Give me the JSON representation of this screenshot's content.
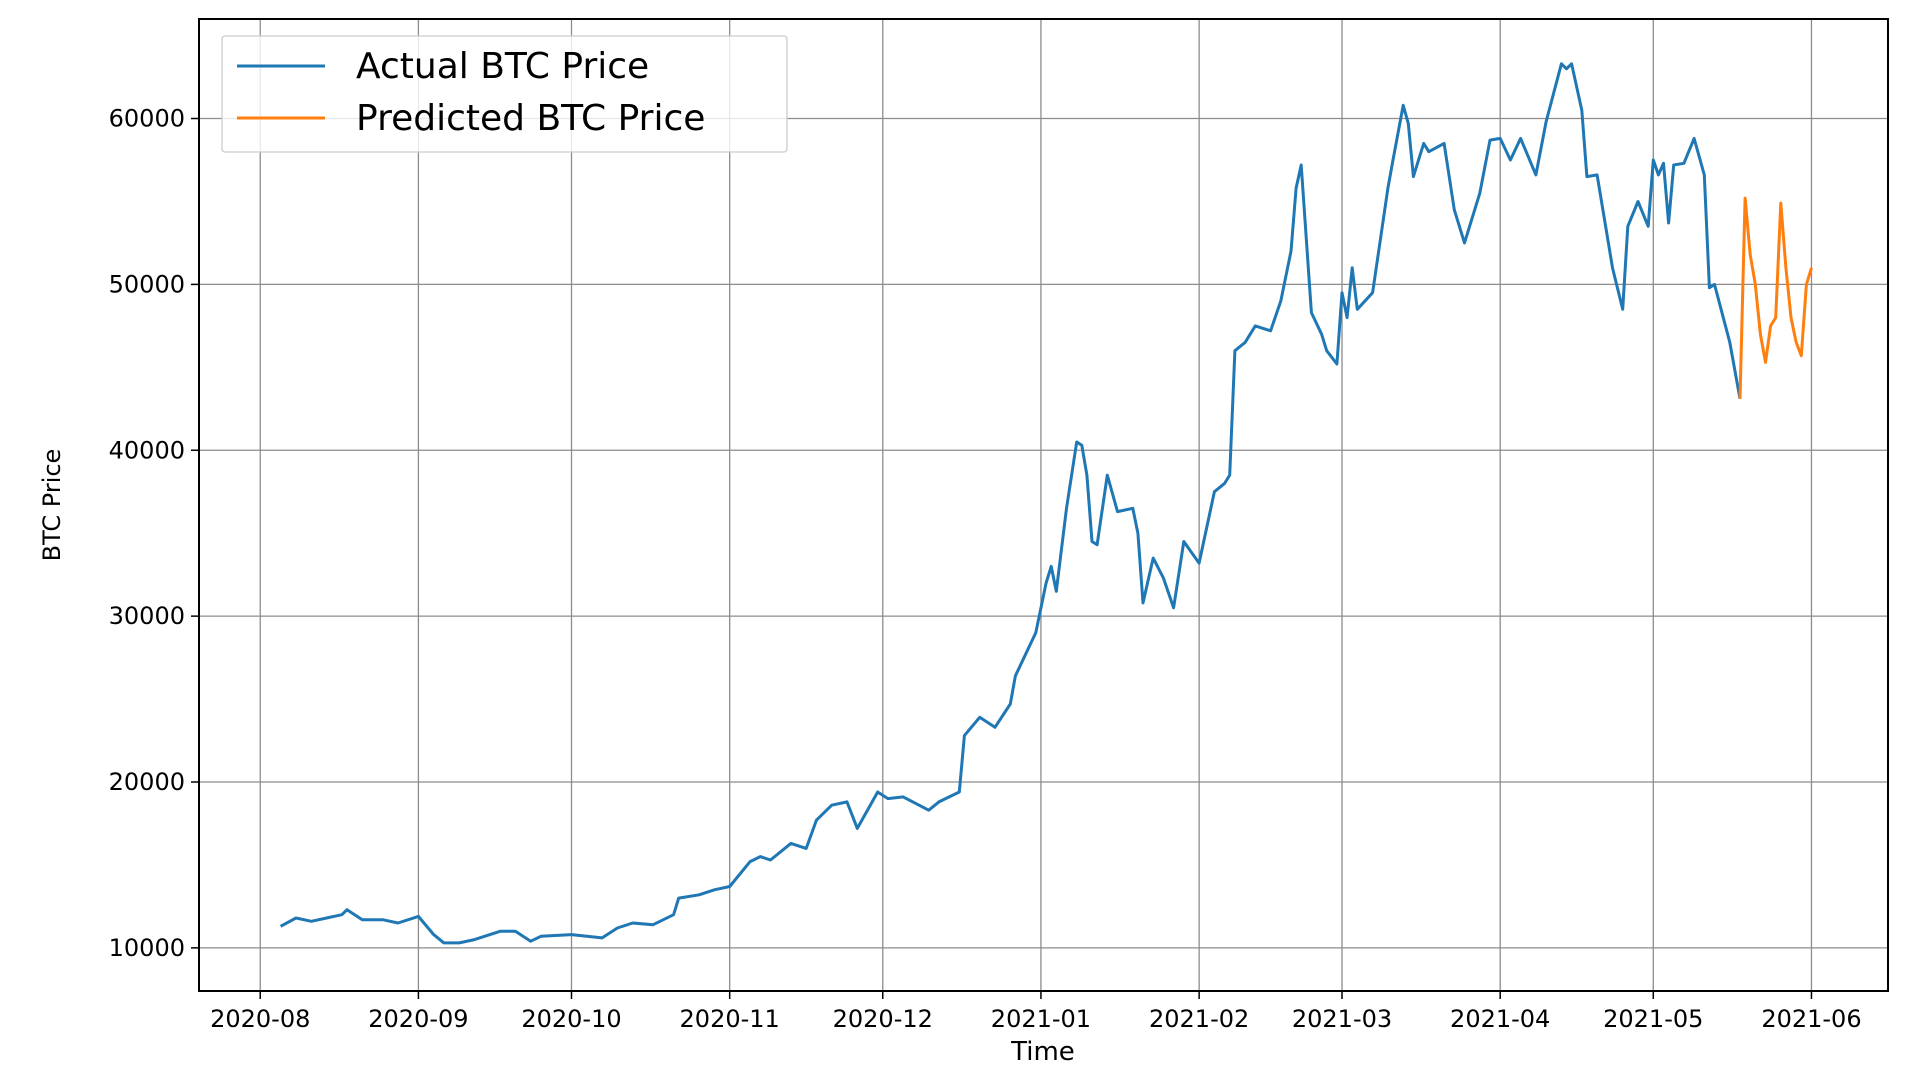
{
  "chart_data": {
    "type": "line",
    "xlabel": "Time",
    "ylabel": "BTC Price",
    "xlim": [
      "2020-07-20",
      "2021-06-16"
    ],
    "xticks": [
      "2020-08",
      "2020-09",
      "2020-10",
      "2020-11",
      "2020-12",
      "2021-01",
      "2021-02",
      "2021-03",
      "2021-04",
      "2021-05",
      "2021-06"
    ],
    "ylim": [
      7400,
      66000
    ],
    "yticks": [
      10000,
      20000,
      30000,
      40000,
      50000,
      60000
    ],
    "grid": true,
    "legend": "upper left",
    "series": [
      {
        "name": "Actual BTC Price",
        "color": "#1f77b4",
        "x": [
          "2020-08-05",
          "2020-08-08",
          "2020-08-11",
          "2020-08-14",
          "2020-08-17",
          "2020-08-18",
          "2020-08-21",
          "2020-08-25",
          "2020-08-28",
          "2020-09-01",
          "2020-09-04",
          "2020-09-06",
          "2020-09-09",
          "2020-09-12",
          "2020-09-17",
          "2020-09-20",
          "2020-09-23",
          "2020-09-25",
          "2020-10-01",
          "2020-10-07",
          "2020-10-10",
          "2020-10-13",
          "2020-10-17",
          "2020-10-21",
          "2020-10-22",
          "2020-10-26",
          "2020-10-29",
          "2020-11-01",
          "2020-11-05",
          "2020-11-07",
          "2020-11-09",
          "2020-11-13",
          "2020-11-16",
          "2020-11-18",
          "2020-11-21",
          "2020-11-24",
          "2020-11-26",
          "2020-11-30",
          "2020-12-02",
          "2020-12-05",
          "2020-12-10",
          "2020-12-12",
          "2020-12-16",
          "2020-12-17",
          "2020-12-20",
          "2020-12-23",
          "2020-12-26",
          "2020-12-27",
          "2020-12-31",
          "2021-01-02",
          "2021-01-03",
          "2021-01-04",
          "2021-01-06",
          "2021-01-08",
          "2021-01-09",
          "2021-01-10",
          "2021-01-11",
          "2021-01-12",
          "2021-01-14",
          "2021-01-16",
          "2021-01-19",
          "2021-01-20",
          "2021-01-21",
          "2021-01-23",
          "2021-01-25",
          "2021-01-27",
          "2021-01-29",
          "2021-02-01",
          "2021-02-04",
          "2021-02-06",
          "2021-02-07",
          "2021-02-08",
          "2021-02-10",
          "2021-02-12",
          "2021-02-15",
          "2021-02-17",
          "2021-02-19",
          "2021-02-20",
          "2021-02-21",
          "2021-02-23",
          "2021-02-25",
          "2021-02-26",
          "2021-02-28",
          "2021-03-01",
          "2021-03-02",
          "2021-03-03",
          "2021-03-04",
          "2021-03-07",
          "2021-03-10",
          "2021-03-11",
          "2021-03-13",
          "2021-03-14",
          "2021-03-15",
          "2021-03-17",
          "2021-03-18",
          "2021-03-21",
          "2021-03-23",
          "2021-03-25",
          "2021-03-28",
          "2021-03-30",
          "2021-04-01",
          "2021-04-03",
          "2021-04-05",
          "2021-04-08",
          "2021-04-10",
          "2021-04-13",
          "2021-04-14",
          "2021-04-15",
          "2021-04-17",
          "2021-04-18",
          "2021-04-20",
          "2021-04-23",
          "2021-04-25",
          "2021-04-26",
          "2021-04-28",
          "2021-04-30",
          "2021-05-01",
          "2021-05-02",
          "2021-05-03",
          "2021-05-04",
          "2021-05-05",
          "2021-05-07",
          "2021-05-09",
          "2021-05-11",
          "2021-05-12",
          "2021-05-13",
          "2021-05-16",
          "2021-05-18"
        ],
        "values": [
          11300,
          11800,
          11600,
          11800,
          12000,
          12300,
          11700,
          11700,
          11500,
          11900,
          10800,
          10300,
          10300,
          10500,
          11000,
          11000,
          10400,
          10700,
          10800,
          10600,
          11200,
          11500,
          11400,
          12000,
          13000,
          13200,
          13500,
          13700,
          15200,
          15500,
          15300,
          16300,
          16000,
          17700,
          18600,
          18800,
          17200,
          19400,
          19000,
          19100,
          18300,
          18800,
          19400,
          22800,
          23900,
          23300,
          24700,
          26400,
          29000,
          32000,
          33000,
          31500,
          36500,
          40500,
          40300,
          38500,
          34500,
          34300,
          38500,
          36300,
          36500,
          35000,
          30800,
          33500,
          32300,
          30500,
          34500,
          33200,
          37500,
          38000,
          38500,
          46000,
          46500,
          47500,
          47200,
          49000,
          52000,
          55800,
          57200,
          48300,
          47000,
          46000,
          45200,
          49500,
          48000,
          51000,
          48500,
          49500,
          55800,
          57500,
          60800,
          59700,
          56500,
          58500,
          58000,
          58500,
          54500,
          52500,
          55500,
          58700,
          58800,
          57500,
          58800,
          56600,
          59800,
          63300,
          63000,
          63300,
          60500,
          56500,
          56600,
          51000,
          48500,
          53500,
          55000,
          53500,
          57500,
          56600,
          57300,
          53700,
          57200,
          57300,
          58800,
          56600,
          49800,
          50000,
          46500,
          43100
        ]
      },
      {
        "name": "Predicted BTC Price",
        "color": "#ff7f0e",
        "x": [
          "2021-05-18",
          "2021-05-19",
          "2021-05-20",
          "2021-05-21",
          "2021-05-22",
          "2021-05-23",
          "2021-05-24",
          "2021-05-25",
          "2021-05-26",
          "2021-05-27",
          "2021-05-28",
          "2021-05-29",
          "2021-05-30",
          "2021-05-31",
          "2021-06-01"
        ],
        "values": [
          43100,
          55200,
          51800,
          50000,
          47000,
          45300,
          47500,
          48000,
          54900,
          51000,
          48000,
          46500,
          45700,
          50000,
          51000
        ]
      }
    ]
  }
}
